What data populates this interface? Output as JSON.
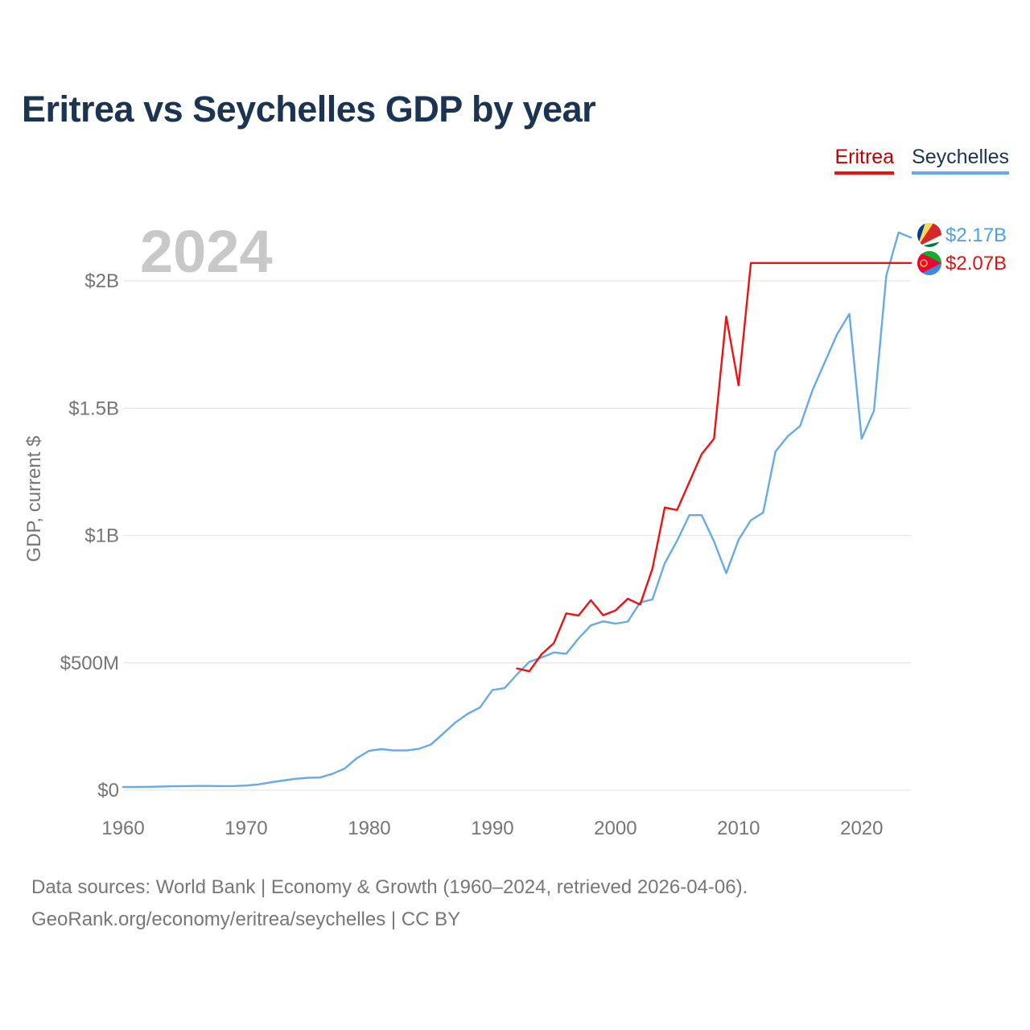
{
  "title": "Eritrea vs Seychelles GDP by year",
  "legend": [
    {
      "name": "Eritrea",
      "color": "#ee1111"
    },
    {
      "name": "Seychelles",
      "color": "#66aae6"
    }
  ],
  "chart_data": {
    "type": "line",
    "year_watermark": "2024",
    "ylabel": "GDP, current $",
    "xlabel": "",
    "xlim": [
      1960,
      2024
    ],
    "ylim": [
      0,
      2000000000
    ],
    "x_ticks": [
      {
        "value": 1960,
        "label": "1960"
      },
      {
        "value": 1970,
        "label": "1970"
      },
      {
        "value": 1980,
        "label": "1980"
      },
      {
        "value": 1990,
        "label": "1990"
      },
      {
        "value": 2000,
        "label": "2000"
      },
      {
        "value": 2010,
        "label": "2010"
      },
      {
        "value": 2020,
        "label": "2020"
      }
    ],
    "y_ticks": [
      {
        "value": 0,
        "label": "$0"
      },
      {
        "value": 500000000,
        "label": "$500M"
      },
      {
        "value": 1000000000,
        "label": "$1B"
      },
      {
        "value": 1500000000,
        "label": "$1.5B"
      },
      {
        "value": 2000000000,
        "label": "$2B"
      }
    ],
    "series": [
      {
        "name": "Eritrea",
        "color": "#ee1111",
        "end_label": "$2.07B",
        "end_label_color": "#e11111",
        "x": [
          1992,
          1993,
          1994,
          1995,
          1996,
          1997,
          1998,
          1999,
          2000,
          2001,
          2002,
          2003,
          2004,
          2005,
          2006,
          2007,
          2008,
          2009,
          2010,
          2011,
          2024
        ],
        "values": [
          478000000,
          467000000,
          534000000,
          578000000,
          694000000,
          686000000,
          746000000,
          687000000,
          706000000,
          752000000,
          729000000,
          870000000,
          1110000000,
          1100000000,
          1210000000,
          1320000000,
          1380000000,
          1860000000,
          1590000000,
          2070000000,
          2070000000
        ]
      },
      {
        "name": "Seychelles",
        "color": "#66aae6",
        "end_label": "$2.17B",
        "end_label_color": "#4d9fe4",
        "x": [
          1960,
          1961,
          1962,
          1963,
          1964,
          1965,
          1966,
          1967,
          1968,
          1969,
          1970,
          1971,
          1972,
          1973,
          1974,
          1975,
          1976,
          1977,
          1978,
          1979,
          1980,
          1981,
          1982,
          1983,
          1984,
          1985,
          1986,
          1987,
          1988,
          1989,
          1990,
          1991,
          1992,
          1993,
          1994,
          1995,
          1996,
          1997,
          1998,
          1999,
          2000,
          2001,
          2002,
          2003,
          2004,
          2005,
          2006,
          2007,
          2008,
          2009,
          2010,
          2011,
          2012,
          2013,
          2014,
          2015,
          2016,
          2017,
          2018,
          2019,
          2020,
          2021,
          2022,
          2023,
          2024
        ],
        "values": [
          12400000,
          12700000,
          13300000,
          14300000,
          15400000,
          16000000,
          16700000,
          16600000,
          16100000,
          16400000,
          18300000,
          22800000,
          31000000,
          37900000,
          44800000,
          48700000,
          49900000,
          64200000,
          85100000,
          126000000,
          155000000,
          161000000,
          156000000,
          156000000,
          162000000,
          179000000,
          222000000,
          266000000,
          300000000,
          325000000,
          393000000,
          401000000,
          455000000,
          504000000,
          521000000,
          541000000,
          536000000,
          596000000,
          647000000,
          663000000,
          654000000,
          662000000,
          737000000,
          749000000,
          891000000,
          979000000,
          1080000000,
          1080000000,
          977000000,
          852000000,
          983000000,
          1060000000,
          1090000000,
          1330000000,
          1390000000,
          1430000000,
          1570000000,
          1680000000,
          1790000000,
          1870000000,
          1380000000,
          1490000000,
          2020000000,
          2190000000,
          2170000000
        ]
      }
    ]
  },
  "footer": {
    "line1": "Data sources: World Bank | Economy & Growth (1960–2024, retrieved 2026-04-06).",
    "line2": "GeoRank.org/economy/eritrea/seychelles | CC BY"
  }
}
